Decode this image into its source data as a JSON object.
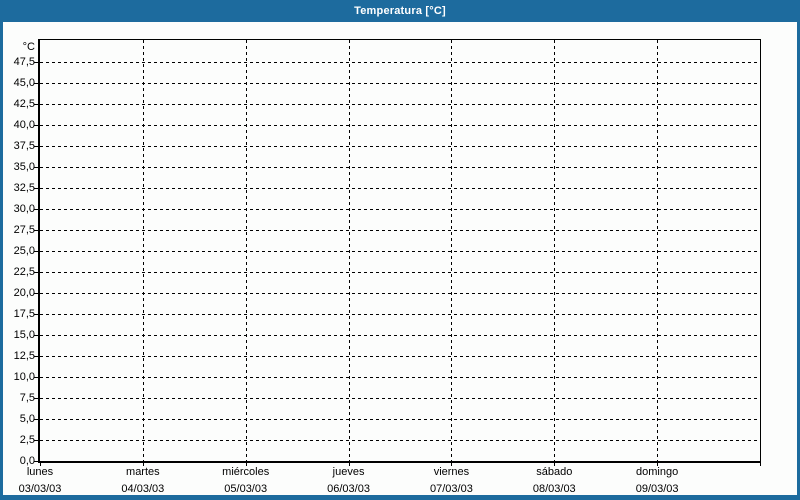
{
  "window": {
    "title": "Temperatura [°C]",
    "colors": {
      "accent": "#1d6b9e",
      "background": "#fcfdfc",
      "grid_and_text": "#000000",
      "title_text": "#ffffff"
    }
  },
  "chart_data": {
    "type": "line",
    "title": "Temperatura [°C]",
    "grid": "dashed",
    "legend": "none",
    "series": [],
    "y_axis": {
      "unit_label": "°C",
      "ylim": [
        0,
        50
      ],
      "tick_step": 2.5,
      "tick_labels": [
        "0,0",
        "2,5",
        "5,0",
        "7,5",
        "10,0",
        "12,5",
        "15,0",
        "17,5",
        "20,0",
        "22,5",
        "25,0",
        "27,5",
        "30,0",
        "32,5",
        "35,0",
        "37,5",
        "40,0",
        "42,5",
        "45,0",
        "47,5"
      ]
    },
    "x_axis": {
      "num_segments": 7,
      "categories": [
        {
          "day": "lunes",
          "date": "03/03/03"
        },
        {
          "day": "martes",
          "date": "04/03/03"
        },
        {
          "day": "miércoles",
          "date": "05/03/03"
        },
        {
          "day": "jueves",
          "date": "06/03/03"
        },
        {
          "day": "viernes",
          "date": "07/03/03"
        },
        {
          "day": "sábado",
          "date": "08/03/03"
        },
        {
          "day": "domingo",
          "date": "09/03/03"
        }
      ]
    }
  }
}
